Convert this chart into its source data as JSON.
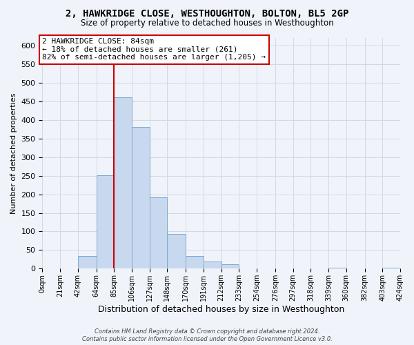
{
  "title": "2, HAWKRIDGE CLOSE, WESTHOUGHTON, BOLTON, BL5 2GP",
  "subtitle": "Size of property relative to detached houses in Westhoughton",
  "xlabel": "Distribution of detached houses by size in Westhoughton",
  "ylabel": "Number of detached properties",
  "bar_color": "#c8d8ee",
  "bar_edge_color": "#7aaad0",
  "grid_color": "#d0d8e8",
  "background_color": "#f0f4fa",
  "bin_edges": [
    0,
    21,
    42,
    64,
    85,
    106,
    127,
    148,
    170,
    191,
    212,
    233,
    254,
    276,
    297,
    318,
    339,
    360,
    382,
    403,
    424
  ],
  "bin_labels": [
    "0sqm",
    "21sqm",
    "42sqm",
    "64sqm",
    "85sqm",
    "106sqm",
    "127sqm",
    "148sqm",
    "170sqm",
    "191sqm",
    "212sqm",
    "233sqm",
    "254sqm",
    "276sqm",
    "297sqm",
    "318sqm",
    "339sqm",
    "360sqm",
    "382sqm",
    "403sqm",
    "424sqm"
  ],
  "bar_heights": [
    0,
    0,
    35,
    252,
    460,
    380,
    192,
    93,
    35,
    20,
    12,
    0,
    0,
    0,
    0,
    0,
    2,
    0,
    0,
    2
  ],
  "ylim": [
    0,
    620
  ],
  "yticks": [
    0,
    50,
    100,
    150,
    200,
    250,
    300,
    350,
    400,
    450,
    500,
    550,
    600
  ],
  "vline_x": 85,
  "vline_color": "#cc0000",
  "annotation_title": "2 HAWKRIDGE CLOSE: 84sqm",
  "annotation_line1": "← 18% of detached houses are smaller (261)",
  "annotation_line2": "82% of semi-detached houses are larger (1,205) →",
  "annotation_box_color": "#ffffff",
  "annotation_box_edge": "#cc0000",
  "footer1": "Contains HM Land Registry data © Crown copyright and database right 2024.",
  "footer2": "Contains public sector information licensed under the Open Government Licence v3.0."
}
